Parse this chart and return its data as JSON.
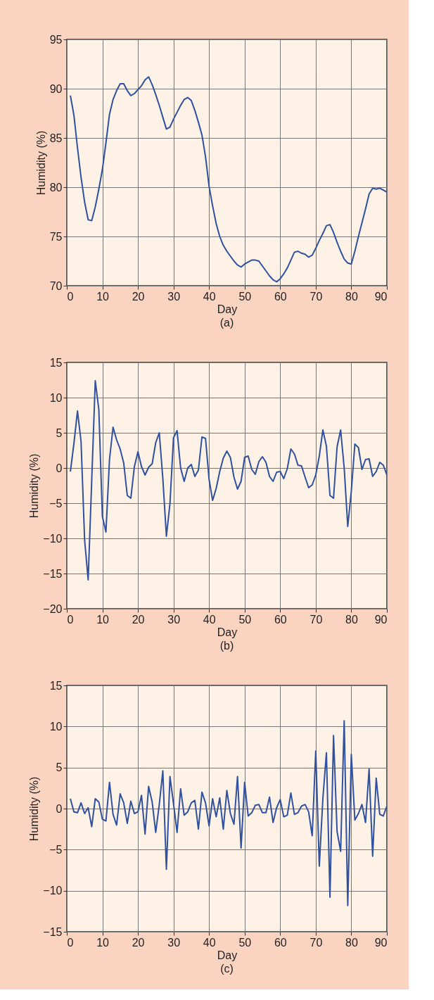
{
  "chart_data": [
    {
      "type": "line",
      "title": "(a)",
      "xlabel": "Day",
      "ylabel": "Humidity (%)",
      "xlim": [
        0,
        90
      ],
      "xticks": [
        0,
        10,
        20,
        30,
        40,
        50,
        60,
        70,
        80,
        90
      ],
      "ylim": [
        70,
        95
      ],
      "yticks": [
        70,
        75,
        80,
        85,
        90,
        95
      ],
      "grid": true,
      "x": [
        1,
        2,
        3,
        4,
        5,
        6,
        7,
        8,
        9,
        10,
        11,
        12,
        13,
        14,
        15,
        16,
        17,
        18,
        19,
        20,
        21,
        22,
        23,
        24,
        25,
        26,
        27,
        28,
        29,
        30,
        31,
        32,
        33,
        34,
        35,
        36,
        37,
        38,
        39,
        40,
        41,
        42,
        43,
        44,
        45,
        46,
        47,
        48,
        49,
        50,
        51,
        52,
        53,
        54,
        55,
        56,
        57,
        58,
        59,
        60,
        61,
        62,
        63,
        64,
        65,
        66,
        67,
        68,
        69,
        70,
        71,
        72,
        73,
        74,
        75,
        76,
        77,
        78,
        79,
        80,
        81,
        82,
        83,
        84,
        85,
        86,
        87,
        88,
        89,
        90
      ],
      "series": [
        {
          "color": "#3050a0",
          "values": [
            89.3,
            87.3,
            84,
            81,
            78.5,
            76.7,
            76.6,
            78,
            79.8,
            81.8,
            84.5,
            87.4,
            88.9,
            89.8,
            90.5,
            90.5,
            89.8,
            89.3,
            89.5,
            89.9,
            90.3,
            90.9,
            91.2,
            90.4,
            89.4,
            88.3,
            87.1,
            85.9,
            86.1,
            86.9,
            87.6,
            88.3,
            88.9,
            89.1,
            88.8,
            87.8,
            86.6,
            85.3,
            83.1,
            80.1,
            78.1,
            76.3,
            75.0,
            74.1,
            73.5,
            73.0,
            72.5,
            72.1,
            71.9,
            72.2,
            72.4,
            72.6,
            72.6,
            72.5,
            72.0,
            71.5,
            71.0,
            70.6,
            70.4,
            70.7,
            71.2,
            71.8,
            72.6,
            73.4,
            73.5,
            73.3,
            73.2,
            72.9,
            73.1,
            73.8,
            74.6,
            75.3,
            76.1,
            76.2,
            75.4,
            74.4,
            73.5,
            72.7,
            72.3,
            72.2,
            73.5,
            75.0,
            76.4,
            77.8,
            79.3,
            79.9,
            79.8,
            79.9,
            79.7,
            79.5
          ]
        }
      ]
    },
    {
      "type": "line",
      "title": "(b)",
      "xlabel": "Day",
      "ylabel": "Humidity (%)",
      "xlim": [
        0,
        90
      ],
      "xticks": [
        0,
        10,
        20,
        30,
        40,
        50,
        60,
        70,
        80,
        90
      ],
      "ylim": [
        -20,
        15
      ],
      "yticks": [
        -20,
        -15,
        -10,
        -5,
        0,
        5,
        10,
        15
      ],
      "grid": true,
      "x": [
        1,
        2,
        3,
        4,
        5,
        6,
        7,
        8,
        9,
        10,
        11,
        12,
        13,
        14,
        15,
        16,
        17,
        18,
        19,
        20,
        21,
        22,
        23,
        24,
        25,
        26,
        27,
        28,
        29,
        30,
        31,
        32,
        33,
        34,
        35,
        36,
        37,
        38,
        39,
        40,
        41,
        42,
        43,
        44,
        45,
        46,
        47,
        48,
        49,
        50,
        51,
        52,
        53,
        54,
        55,
        56,
        57,
        58,
        59,
        60,
        61,
        62,
        63,
        64,
        65,
        66,
        67,
        68,
        69,
        70,
        71,
        72,
        73,
        74,
        75,
        76,
        77,
        78,
        79,
        80,
        81,
        82,
        83,
        84,
        85,
        86,
        87,
        88,
        89,
        90
      ],
      "series": [
        {
          "color": "#3050a0",
          "values": [
            -0.5,
            3.5,
            8.1,
            3.8,
            -10.2,
            -15.9,
            -1.8,
            12.4,
            8.3,
            -6.9,
            -9.1,
            1.2,
            5.8,
            4.0,
            2.7,
            0.7,
            -3.9,
            -4.3,
            0.2,
            2.3,
            0.2,
            -1.0,
            0.1,
            0.6,
            3.6,
            5.0,
            -1.5,
            -9.7,
            -5.1,
            4.3,
            5.3,
            0.0,
            -1.9,
            0.0,
            0.5,
            -1.2,
            -0.3,
            4.4,
            4.2,
            -1.6,
            -4.6,
            -2.9,
            -0.5,
            1.4,
            2.4,
            1.5,
            -1.3,
            -3.0,
            -1.9,
            1.5,
            1.7,
            -0.2,
            -0.9,
            0.9,
            1.6,
            0.8,
            -1.2,
            -1.9,
            -0.6,
            -0.5,
            -1.5,
            -0.1,
            2.7,
            2.0,
            0.4,
            0.3,
            -1.3,
            -2.8,
            -2.4,
            -1.0,
            1.7,
            5.4,
            3.1,
            -3.9,
            -4.3,
            3.0,
            5.4,
            0.0,
            -8.3,
            -3.3,
            3.4,
            2.9,
            -0.2,
            1.2,
            1.3,
            -1.2,
            -0.5,
            0.8,
            0.4,
            -1.0
          ]
        }
      ]
    },
    {
      "type": "line",
      "title": "(c)",
      "xlabel": "Day",
      "ylabel": "Humidity (%)",
      "xlim": [
        0,
        90
      ],
      "xticks": [
        0,
        10,
        20,
        30,
        40,
        50,
        60,
        70,
        80,
        90
      ],
      "ylim": [
        -15,
        15
      ],
      "yticks": [
        -15,
        -10,
        -5,
        0,
        5,
        10,
        15
      ],
      "grid": true,
      "x": [
        1,
        2,
        3,
        4,
        5,
        6,
        7,
        8,
        9,
        10,
        11,
        12,
        13,
        14,
        15,
        16,
        17,
        18,
        19,
        20,
        21,
        22,
        23,
        24,
        25,
        26,
        27,
        28,
        29,
        30,
        31,
        32,
        33,
        34,
        35,
        36,
        37,
        38,
        39,
        40,
        41,
        42,
        43,
        44,
        45,
        46,
        47,
        48,
        49,
        50,
        51,
        52,
        53,
        54,
        55,
        56,
        57,
        58,
        59,
        60,
        61,
        62,
        63,
        64,
        65,
        66,
        67,
        68,
        69,
        70,
        71,
        72,
        73,
        74,
        75,
        76,
        77,
        78,
        79,
        80,
        81,
        82,
        83,
        84,
        85,
        86,
        87,
        88,
        89,
        90
      ],
      "series": [
        {
          "color": "#3050a0",
          "values": [
            1.2,
            -0.4,
            -0.5,
            0.7,
            -0.6,
            0.1,
            -2.2,
            1.2,
            0.8,
            -1.3,
            -1.5,
            3.2,
            -0.7,
            -2.0,
            1.8,
            0.7,
            -1.8,
            0.9,
            -0.6,
            -0.4,
            1.6,
            -3.1,
            2.7,
            0.8,
            -2.9,
            0.5,
            4.6,
            -7.4,
            3.9,
            0.6,
            -2.9,
            2.4,
            -0.8,
            -0.4,
            0.7,
            1.0,
            -2.5,
            2.0,
            0.7,
            -2.1,
            1.2,
            -1.0,
            1.3,
            -2.5,
            2.2,
            -0.6,
            -1.9,
            3.9,
            -4.8,
            3.2,
            -0.9,
            -0.5,
            0.4,
            0.5,
            -0.5,
            -0.5,
            1.4,
            -1.7,
            0.1,
            1.1,
            -1.0,
            -0.8,
            1.9,
            -0.7,
            -0.5,
            0.3,
            0.5,
            -0.4,
            -3.3,
            7.0,
            -7.0,
            1.2,
            6.8,
            -10.8,
            8.9,
            -2.8,
            -5.2,
            10.7,
            -11.8,
            6.6,
            -1.4,
            -0.6,
            0.5,
            -1.7,
            4.8,
            -5.8,
            3.7,
            -0.7,
            -0.9,
            0.3
          ]
        }
      ]
    }
  ]
}
